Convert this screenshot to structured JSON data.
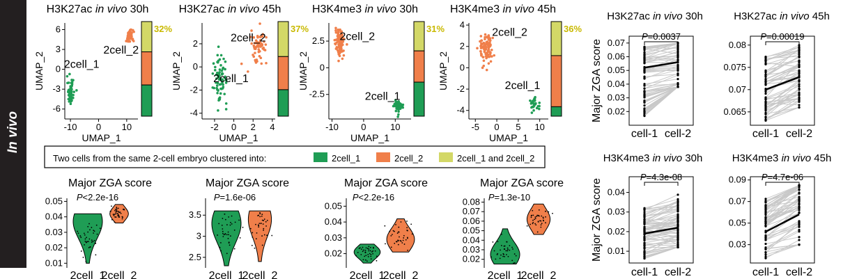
{
  "side_label": "In vivo",
  "colors": {
    "green": "#1f9d55",
    "orange": "#f07f4a",
    "yellow": "#d3d867",
    "yellow_text": "#c9b900",
    "gray_line": "#c8c8c8",
    "black": "#000000"
  },
  "legend": {
    "title": "Two cells from the same 2-cell embryo clustered into:",
    "items": [
      {
        "label": "2cell_1",
        "color": "#1f9d55"
      },
      {
        "label": "2cell_2",
        "color": "#f07f4a"
      },
      {
        "label": "2cell_1 and 2cell_2",
        "color": "#d3d867"
      }
    ]
  },
  "chart_data": [
    {
      "type": "scatter",
      "id": "umap1",
      "title_pre": "H3K27ac ",
      "title_it": "in vivo",
      "title_post": " 30h",
      "xlabel": "UMAP_1",
      "ylabel": "UMAP_2",
      "xlim": [
        -12,
        14
      ],
      "ylim": [
        -7.5,
        7
      ],
      "xticks": [
        -10,
        0,
        10
      ],
      "yticks": [
        -6,
        -3,
        0,
        3,
        6
      ],
      "clusters": [
        {
          "name": "2cell_1",
          "color": "green",
          "cx": -10,
          "cy": -3.5,
          "sx": 0.8,
          "sy": 1.2,
          "n": 70
        },
        {
          "name": "2cell_2",
          "color": "orange",
          "cx": 11,
          "cy": 5,
          "sx": 0.9,
          "sy": 0.7,
          "n": 70
        }
      ],
      "labels": [
        {
          "text": "2cell_2",
          "x": 8,
          "y": 2.4
        },
        {
          "text": "2cell_1",
          "x": -6,
          "y": 0.2
        }
      ],
      "bar": {
        "green": 0.33,
        "orange": 0.35,
        "yellow": 0.32
      },
      "pct": "32%"
    },
    {
      "type": "scatter",
      "id": "umap2",
      "title_pre": "H3K27ac ",
      "title_it": "in vivo",
      "title_post": " 45h",
      "xlabel": "UMAP_1",
      "ylabel": "UMAP_2",
      "xlim": [
        -3.3,
        4.3
      ],
      "ylim": [
        -4.5,
        3.8
      ],
      "xticks": [
        -2,
        0,
        2,
        4
      ],
      "yticks": [
        -4,
        -2,
        0,
        2
      ],
      "clusters": [
        {
          "name": "2cell_1",
          "color": "green",
          "cx": -1.4,
          "cy": -1,
          "sx": 0.5,
          "sy": 1.6,
          "n": 70
        },
        {
          "name": "2cell_2",
          "color": "orange",
          "cx": 2.6,
          "cy": 1.8,
          "sx": 0.6,
          "sy": 0.9,
          "n": 60
        }
      ],
      "labels": [
        {
          "text": "2cell_2",
          "x": 1.5,
          "y": 2.2
        },
        {
          "text": "2cell_1",
          "x": -0.3,
          "y": -1.3
        }
      ],
      "bar": {
        "green": 0.28,
        "orange": 0.35,
        "yellow": 0.37
      },
      "pct": "37%"
    },
    {
      "type": "scatter",
      "id": "umap3",
      "title_pre": "H3K4me3 ",
      "title_it": "in vivo",
      "title_post": " 30h",
      "xlabel": "UMAP_1",
      "ylabel": "UMAP_2",
      "xlim": [
        -11,
        15
      ],
      "ylim": [
        -4.8,
        4.2
      ],
      "xticks": [
        -10,
        0,
        10
      ],
      "yticks": [
        -2.5,
        0,
        2.5
      ],
      "clusters": [
        {
          "name": "2cell_2",
          "color": "orange",
          "cx": -7.5,
          "cy": 2.3,
          "sx": 1.0,
          "sy": 0.9,
          "n": 110
        },
        {
          "name": "2cell_1",
          "color": "green",
          "cx": 11,
          "cy": -3.6,
          "sx": 1.0,
          "sy": 0.35,
          "n": 70
        }
      ],
      "labels": [
        {
          "text": "2cell_2",
          "x": -2,
          "y": 2.6
        },
        {
          "text": "2cell_1",
          "x": 6,
          "y": -3.0
        }
      ],
      "bar": {
        "green": 0.36,
        "orange": 0.33,
        "yellow": 0.31
      },
      "pct": "31%"
    },
    {
      "type": "scatter",
      "id": "umap4",
      "title_pre": "H3K4me3 ",
      "title_it": "in vivo",
      "title_post": " 45h",
      "xlabel": "UMAP_1",
      "ylabel": "UMAP_2",
      "xlim": [
        -6.5,
        12
      ],
      "ylim": [
        -4.8,
        4.2
      ],
      "xticks": [
        -5,
        0,
        5,
        10
      ],
      "yticks": [
        -4,
        -2,
        0,
        2,
        4
      ],
      "clusters": [
        {
          "name": "2cell_2",
          "color": "orange",
          "cx": -2.5,
          "cy": 1.8,
          "sx": 1.2,
          "sy": 1.2,
          "n": 90
        },
        {
          "name": "2cell_1",
          "color": "green",
          "cx": 8.8,
          "cy": -3.3,
          "sx": 0.7,
          "sy": 0.5,
          "n": 30
        }
      ],
      "labels": [
        {
          "text": "2cell_2",
          "x": 3,
          "y": 3.0
        },
        {
          "text": "2cell_1",
          "x": 6,
          "y": -2.0
        }
      ],
      "bar": {
        "green": 0.1,
        "orange": 0.54,
        "yellow": 0.36
      },
      "pct": "36%"
    },
    {
      "type": "violin",
      "id": "vio1",
      "title": "Major ZGA score",
      "p": "<2.2e-16",
      "ylim": [
        0.007,
        0.052
      ],
      "yticks": [
        0.01,
        0.02,
        0.03,
        0.04,
        0.05
      ],
      "categories": [
        "2cell_1",
        "2cell_2"
      ],
      "groups": [
        {
          "color": "green",
          "median": 0.027,
          "min": 0.01,
          "max": 0.042,
          "mode": 0.037,
          "w": 0.9
        },
        {
          "color": "orange",
          "median": 0.042,
          "min": 0.036,
          "max": 0.048,
          "mode": 0.042,
          "w": 0.55
        }
      ]
    },
    {
      "type": "violin",
      "id": "vio2",
      "title": "Major ZGA score",
      "p": "=1.6e-06",
      "ylim": [
        2.25,
        3.9
      ],
      "yticks": [
        2.5,
        3.0,
        3.5
      ],
      "categories": [
        "2cell_1",
        "2cell_2"
      ],
      "groups": [
        {
          "color": "green",
          "median": 3.2,
          "min": 2.3,
          "max": 3.6,
          "mode": 3.3,
          "w": 0.9
        },
        {
          "color": "orange",
          "median": 3.3,
          "min": 2.4,
          "max": 3.6,
          "mode": 3.4,
          "w": 0.7
        }
      ]
    },
    {
      "type": "violin",
      "id": "vio3",
      "title": "Major ZGA score",
      "p": "<2.2e-16",
      "ylim": [
        0.011,
        0.055
      ],
      "yticks": [
        0.02,
        0.03,
        0.04,
        0.05
      ],
      "categories": [
        "2cell_1",
        "2cell_2"
      ],
      "groups": [
        {
          "color": "green",
          "median": 0.02,
          "min": 0.014,
          "max": 0.026,
          "mode": 0.021,
          "w": 0.8
        },
        {
          "color": "orange",
          "median": 0.031,
          "min": 0.021,
          "max": 0.042,
          "mode": 0.029,
          "w": 0.85
        }
      ]
    },
    {
      "type": "violin",
      "id": "vio4",
      "title": "Major ZGA score",
      "p": "=1.3e-10",
      "ylim": [
        0.011,
        0.084
      ],
      "yticks": [
        0.02,
        0.03,
        0.04,
        0.05,
        0.06,
        0.07,
        0.08
      ],
      "categories": [
        "2cell_1",
        "2cell_2"
      ],
      "groups": [
        {
          "color": "green",
          "median": 0.027,
          "min": 0.015,
          "max": 0.052,
          "mode": 0.025,
          "w": 0.9
        },
        {
          "color": "orange",
          "median": 0.063,
          "min": 0.046,
          "max": 0.078,
          "mode": 0.062,
          "w": 0.7
        }
      ]
    },
    {
      "type": "paired",
      "id": "pair1",
      "title_pre": "H3K27ac ",
      "title_it": "in vivo",
      "title_post": " 30h",
      "ylabel": "Major ZGA score",
      "p": "=0.0037",
      "ylim": [
        0.01,
        0.075
      ],
      "yticks": [
        0.02,
        0.03,
        0.04,
        0.05,
        0.06,
        0.07
      ],
      "categories": [
        "cell-1",
        "cell-2"
      ],
      "mean": [
        0.052,
        0.056
      ],
      "left_range": [
        0.015,
        0.068
      ],
      "right_range": [
        0.038,
        0.07
      ],
      "n": 70
    },
    {
      "type": "paired",
      "id": "pair2",
      "title_pre": "H3K27ac ",
      "title_it": "in vivo",
      "title_post": " 45h",
      "ylabel": "",
      "p": "=0.00019",
      "ylim": [
        0.062,
        0.082
      ],
      "yticks": [
        0.065,
        0.07,
        0.075,
        0.08
      ],
      "categories": [
        "cell-1",
        "cell-2"
      ],
      "mean": [
        0.07,
        0.0728
      ],
      "left_range": [
        0.063,
        0.0775
      ],
      "right_range": [
        0.066,
        0.08
      ],
      "n": 60
    },
    {
      "type": "paired",
      "id": "pair3",
      "title_pre": "H3K4me3 ",
      "title_it": "in vivo",
      "title_post": " 30h",
      "ylabel": "Major ZGA score",
      "p": "=4.3e-08",
      "ylim": [
        0.004,
        0.048
      ],
      "yticks": [
        0.01,
        0.02,
        0.03,
        0.04
      ],
      "categories": [
        "cell-1",
        "cell-2"
      ],
      "mean": [
        0.019,
        0.022
      ],
      "left_range": [
        0.006,
        0.032
      ],
      "right_range": [
        0.012,
        0.04
      ],
      "n": 70
    },
    {
      "type": "paired",
      "id": "pair4",
      "title_pre": "H3K4me3 ",
      "title_it": "in vivo",
      "title_post": " 45h",
      "ylabel": "",
      "p": "=4.7e-06",
      "ylim": [
        0.013,
        0.093
      ],
      "yticks": [
        0.03,
        0.05,
        0.07,
        0.09
      ],
      "categories": [
        "cell-1",
        "cell-2"
      ],
      "mean": [
        0.042,
        0.058
      ],
      "left_range": [
        0.016,
        0.074
      ],
      "right_range": [
        0.03,
        0.085
      ],
      "n": 60
    }
  ]
}
